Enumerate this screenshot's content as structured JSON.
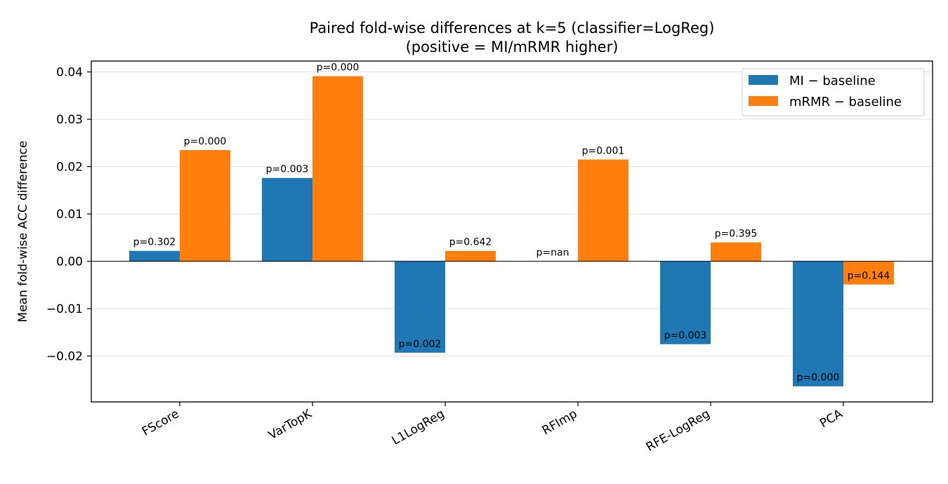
{
  "chart_data": {
    "type": "bar",
    "title": "Paired fold-wise differences at k=5 (classifier=LogReg)",
    "subtitle": "(positive = MI/mRMR higher)",
    "xlabel": "",
    "ylabel": "Mean fold-wise ACC difference",
    "categories": [
      "FScore",
      "VarTopK",
      "L1LogReg",
      "RFImp",
      "RFE-LogReg",
      "PCA"
    ],
    "series": [
      {
        "name": "MI − baseline",
        "color": "#1f77b4",
        "values": [
          0.0022,
          0.0176,
          -0.0193,
          0.0,
          -0.0175,
          -0.0264
        ],
        "pvalues": [
          "p=0.302",
          "p=0.003",
          "p=0.002",
          "p=nan",
          "p=0.003",
          "p=0.000"
        ]
      },
      {
        "name": "mRMR − baseline",
        "color": "#ff7f0e",
        "values": [
          0.0235,
          0.0391,
          0.0022,
          0.0215,
          0.004,
          -0.0049
        ],
        "pvalues": [
          "p=0.000",
          "p=0.000",
          "p=0.642",
          "p=0.001",
          "p=0.395",
          "p=0.144"
        ]
      }
    ],
    "ylim": [
      -0.0297,
      0.0423
    ],
    "yticks": [
      -0.02,
      -0.01,
      0.0,
      0.01,
      0.02,
      0.03,
      0.04
    ],
    "ytick_labels": [
      "−0.02",
      "−0.01",
      "0.00",
      "0.01",
      "0.02",
      "0.03",
      "0.04"
    ],
    "grid": "y",
    "legend": "top-right"
  }
}
